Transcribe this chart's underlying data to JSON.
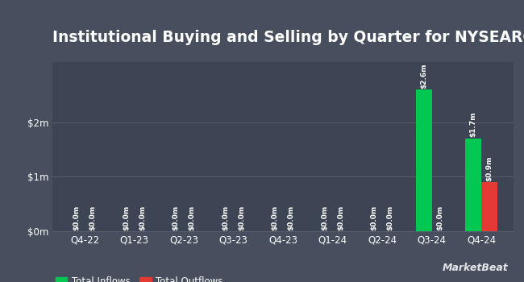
{
  "title": "Institutional Buying and Selling by Quarter for NYSEARCA:XDTE",
  "quarters": [
    "Q4-22",
    "Q1-23",
    "Q2-23",
    "Q3-23",
    "Q4-23",
    "Q1-24",
    "Q2-24",
    "Q3-24",
    "Q4-24"
  ],
  "inflows": [
    0.0,
    0.0,
    0.0,
    0.0,
    0.0,
    0.0,
    0.0,
    2600000,
    1700000
  ],
  "outflows": [
    0.0,
    0.0,
    0.0,
    0.0,
    0.0,
    0.0,
    0.0,
    0.0,
    900000
  ],
  "inflow_labels": [
    "$0.0m",
    "$0.0m",
    "$0.0m",
    "$0.0m",
    "$0.0m",
    "$0.0m",
    "$0.0m",
    "$2.6m",
    "$1.7m"
  ],
  "outflow_labels": [
    "$0.0m",
    "$0.0m",
    "$0.0m",
    "$0.0m",
    "$0.0m",
    "$0.0m",
    "$0.0m",
    "$0.0m",
    "$0.9m"
  ],
  "inflow_color": "#00c853",
  "outflow_color": "#e53935",
  "outer_bg_color": "#474f5e",
  "plot_bg_color": "#3d4453",
  "text_color": "#ffffff",
  "grid_color": "#555e6e",
  "yticks": [
    0,
    1000000,
    2000000
  ],
  "ytick_labels": [
    "$0m",
    "$1m",
    "$2m"
  ],
  "ylim": [
    0,
    3100000
  ],
  "legend_inflow": "Total Inflows",
  "legend_outflow": "Total Outflows",
  "bar_width": 0.32,
  "title_fontsize": 13.5,
  "label_fontsize": 6.5,
  "axis_fontsize": 8.5,
  "legend_fontsize": 8.5,
  "marketbeat_text": "MarketBeat"
}
